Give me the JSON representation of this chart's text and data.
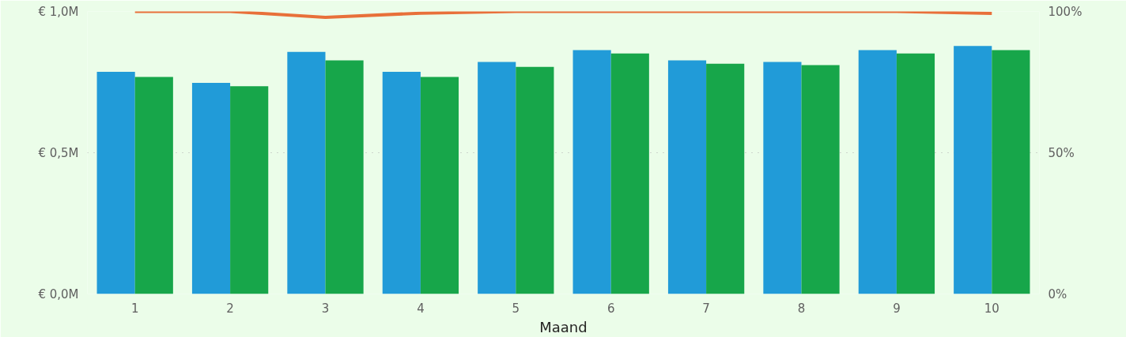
{
  "chart_data": {
    "type": "bar",
    "xlabel": "Maand",
    "categories": [
      "1",
      "2",
      "3",
      "4",
      "5",
      "6",
      "7",
      "8",
      "9",
      "10"
    ],
    "series": [
      {
        "color": "#219bd8",
        "values": [
          0.786,
          0.747,
          0.857,
          0.786,
          0.821,
          0.863,
          0.827,
          0.821,
          0.863,
          0.878
        ]
      },
      {
        "color": "#17a64a",
        "values": [
          0.768,
          0.735,
          0.827,
          0.768,
          0.804,
          0.851,
          0.815,
          0.81,
          0.851,
          0.863
        ]
      },
      {
        "type": "line",
        "axis": "y2",
        "color": "#e8703a",
        "values": [
          100,
          100,
          97.9,
          99.4,
          100,
          100,
          100,
          100,
          100,
          99.3
        ]
      }
    ],
    "ylim": [
      0,
      1.0
    ],
    "yticks": [
      {
        "value": 0,
        "label": "€ 0,0M"
      },
      {
        "value": 0.5,
        "label": "€ 0,5M"
      },
      {
        "value": 1.0,
        "label": "€ 1,0M"
      }
    ],
    "y2lim": [
      0,
      100
    ],
    "y2ticks": [
      {
        "value": 0,
        "label": "0%"
      },
      {
        "value": 50,
        "label": "50%"
      },
      {
        "value": 100,
        "label": "100%"
      }
    ],
    "grid": "y"
  }
}
